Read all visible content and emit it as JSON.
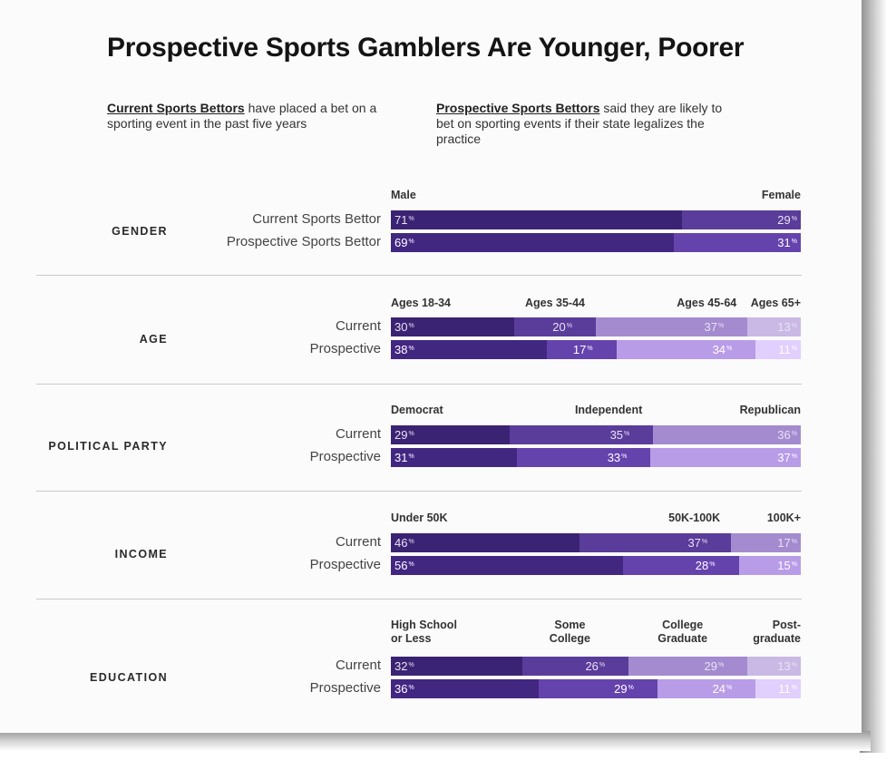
{
  "title": "Prospective Sports Gamblers Are Younger, Poorer",
  "definitions": [
    {
      "term": "Current Sports Bettors",
      "text": " have placed a bet on a sporting event in the past five years"
    },
    {
      "term": "Prospective Sports Bettors",
      "text": " said they are likely to bet on sporting events if their state legalizes the practice"
    }
  ],
  "colors": [
    "#3b2373",
    "#5a3c9a",
    "#a48bcf",
    "#c9b9e4"
  ],
  "chart_data": {
    "type": "bar",
    "orientation": "horizontal-stacked-100",
    "title": "Prospective Sports Gamblers Are Younger, Poorer",
    "sections": [
      {
        "label": "GENDER",
        "categories": [
          "Male",
          "Female"
        ],
        "rows": [
          {
            "label": "Current Sports Bettor",
            "values": [
              71,
              29
            ]
          },
          {
            "label": "Prospective Sports Bettor",
            "values": [
              69,
              31
            ]
          }
        ]
      },
      {
        "label": "AGE",
        "categories": [
          "Ages 18-34",
          "Ages 35-44",
          "Ages 45-64",
          "Ages 65+"
        ],
        "rows": [
          {
            "label": "Current",
            "values": [
              30,
              20,
              37,
              13
            ]
          },
          {
            "label": "Prospective",
            "values": [
              38,
              17,
              34,
              11
            ]
          }
        ]
      },
      {
        "label": "POLITICAL PARTY",
        "categories": [
          "Democrat",
          "Independent",
          "Republican"
        ],
        "rows": [
          {
            "label": "Current",
            "values": [
              29,
              35,
              36
            ]
          },
          {
            "label": "Prospective",
            "values": [
              31,
              33,
              37
            ]
          }
        ]
      },
      {
        "label": "INCOME",
        "categories": [
          "Under 50K",
          "50K-100K",
          "100K+"
        ],
        "rows": [
          {
            "label": "Current",
            "values": [
              46,
              37,
              17
            ]
          },
          {
            "label": "Prospective",
            "values": [
              56,
              28,
              15
            ]
          }
        ]
      },
      {
        "label": "EDUCATION",
        "categories": [
          "High School\nor Less",
          "Some\nCollege",
          "College\nGraduate",
          "Post-\ngraduate"
        ],
        "rows": [
          {
            "label": "Current",
            "values": [
              32,
              26,
              29,
              13
            ]
          },
          {
            "label": "Prospective",
            "values": [
              36,
              29,
              24,
              11
            ]
          }
        ]
      }
    ],
    "value_suffix": "%"
  }
}
